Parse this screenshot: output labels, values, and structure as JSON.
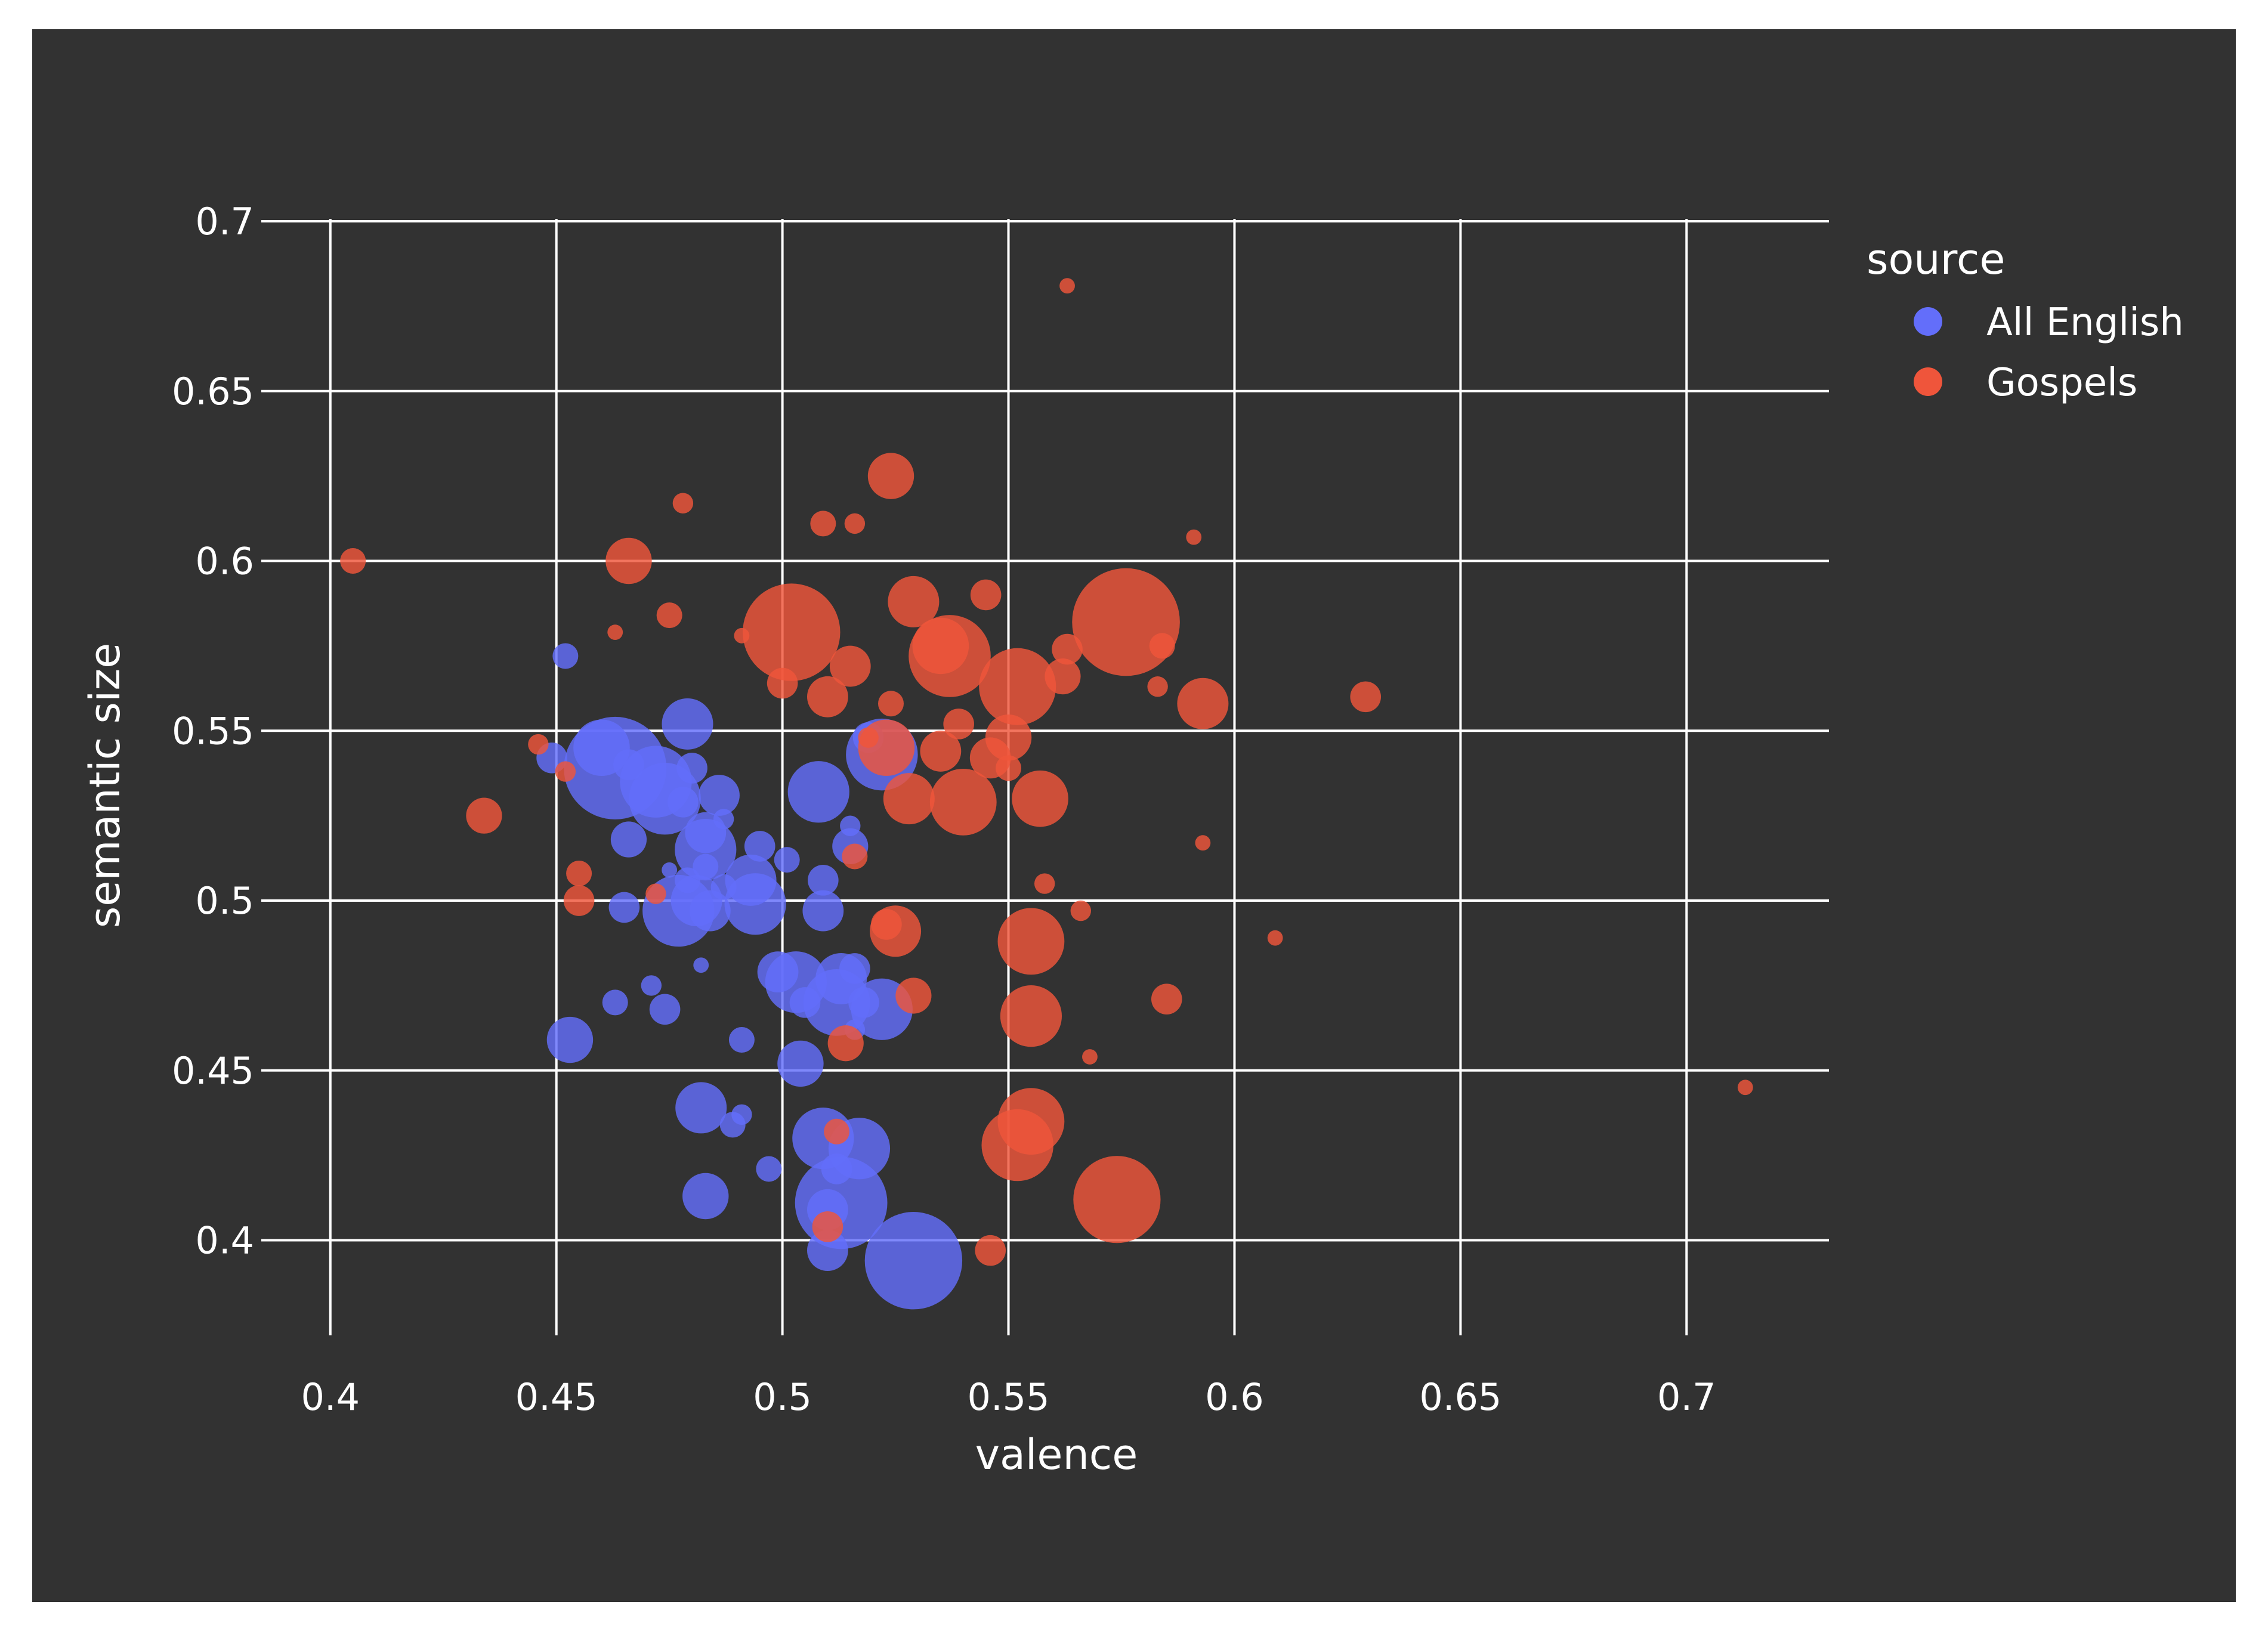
{
  "chart_data": {
    "type": "scatter",
    "xlabel": "valence",
    "ylabel": "semantic size",
    "xlim": [
      0.39,
      0.7315
    ],
    "ylim": [
      0.372,
      0.7
    ],
    "xticks": [
      0.4,
      0.45,
      0.5,
      0.55,
      0.6,
      0.65,
      0.7
    ],
    "xtick_labels": [
      "0.4",
      "0.45",
      "0.5",
      "0.55",
      "0.6",
      "0.65",
      "0.7"
    ],
    "yticks": [
      0.4,
      0.45,
      0.5,
      0.55,
      0.6,
      0.65,
      0.7
    ],
    "ytick_labels": [
      "0.4",
      "0.45",
      "0.5",
      "0.55",
      "0.6",
      "0.65",
      "0.7"
    ],
    "grid": true,
    "legend_title": "source",
    "legend_position": "top-right",
    "series": [
      {
        "name": "All English",
        "color": "#636efa",
        "points": [
          {
            "x": 0.452,
            "y": 0.572,
            "size": 5
          },
          {
            "x": 0.449,
            "y": 0.542,
            "size": 6
          },
          {
            "x": 0.46,
            "y": 0.545,
            "size": 11
          },
          {
            "x": 0.463,
            "y": 0.539,
            "size": 20
          },
          {
            "x": 0.466,
            "y": 0.54,
            "size": 6
          },
          {
            "x": 0.472,
            "y": 0.535,
            "size": 14
          },
          {
            "x": 0.474,
            "y": 0.53,
            "size": 14
          },
          {
            "x": 0.479,
            "y": 0.552,
            "size": 10
          },
          {
            "x": 0.48,
            "y": 0.539,
            "size": 6
          },
          {
            "x": 0.478,
            "y": 0.529,
            "size": 6
          },
          {
            "x": 0.486,
            "y": 0.531,
            "size": 8
          },
          {
            "x": 0.466,
            "y": 0.518,
            "size": 7
          },
          {
            "x": 0.483,
            "y": 0.52,
            "size": 8
          },
          {
            "x": 0.483,
            "y": 0.515,
            "size": 12
          },
          {
            "x": 0.487,
            "y": 0.524,
            "size": 4
          },
          {
            "x": 0.495,
            "y": 0.516,
            "size": 6
          },
          {
            "x": 0.501,
            "y": 0.512,
            "size": 5
          },
          {
            "x": 0.475,
            "y": 0.509,
            "size": 3
          },
          {
            "x": 0.479,
            "y": 0.506,
            "size": 5
          },
          {
            "x": 0.483,
            "y": 0.51,
            "size": 5
          },
          {
            "x": 0.493,
            "y": 0.506,
            "size": 10
          },
          {
            "x": 0.487,
            "y": 0.504,
            "size": 5
          },
          {
            "x": 0.481,
            "y": 0.5,
            "size": 10
          },
          {
            "x": 0.477,
            "y": 0.497,
            "size": 14
          },
          {
            "x": 0.465,
            "y": 0.498,
            "size": 6
          },
          {
            "x": 0.484,
            "y": 0.497,
            "size": 8
          },
          {
            "x": 0.494,
            "y": 0.499,
            "size": 12
          },
          {
            "x": 0.509,
            "y": 0.506,
            "size": 6
          },
          {
            "x": 0.509,
            "y": 0.497,
            "size": 8
          },
          {
            "x": 0.515,
            "y": 0.522,
            "size": 4
          },
          {
            "x": 0.515,
            "y": 0.516,
            "size": 7
          },
          {
            "x": 0.508,
            "y": 0.532,
            "size": 12
          },
          {
            "x": 0.519,
            "y": 0.548,
            "size": 6
          },
          {
            "x": 0.522,
            "y": 0.543,
            "size": 14
          },
          {
            "x": 0.482,
            "y": 0.481,
            "size": 3
          },
          {
            "x": 0.471,
            "y": 0.475,
            "size": 4
          },
          {
            "x": 0.463,
            "y": 0.47,
            "size": 5
          },
          {
            "x": 0.474,
            "y": 0.468,
            "size": 6
          },
          {
            "x": 0.499,
            "y": 0.479,
            "size": 8
          },
          {
            "x": 0.503,
            "y": 0.476,
            "size": 12
          },
          {
            "x": 0.505,
            "y": 0.47,
            "size": 6
          },
          {
            "x": 0.516,
            "y": 0.48,
            "size": 6
          },
          {
            "x": 0.513,
            "y": 0.477,
            "size": 10
          },
          {
            "x": 0.512,
            "y": 0.47,
            "size": 13
          },
          {
            "x": 0.518,
            "y": 0.47,
            "size": 6
          },
          {
            "x": 0.522,
            "y": 0.468,
            "size": 12
          },
          {
            "x": 0.516,
            "y": 0.462,
            "size": 4
          },
          {
            "x": 0.453,
            "y": 0.459,
            "size": 9
          },
          {
            "x": 0.491,
            "y": 0.459,
            "size": 5
          },
          {
            "x": 0.504,
            "y": 0.452,
            "size": 9
          },
          {
            "x": 0.482,
            "y": 0.439,
            "size": 10
          },
          {
            "x": 0.491,
            "y": 0.437,
            "size": 4
          },
          {
            "x": 0.489,
            "y": 0.434,
            "size": 5
          },
          {
            "x": 0.509,
            "y": 0.43,
            "size": 12
          },
          {
            "x": 0.517,
            "y": 0.427,
            "size": 12
          },
          {
            "x": 0.497,
            "y": 0.421,
            "size": 5
          },
          {
            "x": 0.512,
            "y": 0.421,
            "size": 6
          },
          {
            "x": 0.483,
            "y": 0.413,
            "size": 9
          },
          {
            "x": 0.513,
            "y": 0.411,
            "size": 18
          },
          {
            "x": 0.51,
            "y": 0.409,
            "size": 8
          },
          {
            "x": 0.51,
            "y": 0.397,
            "size": 8
          },
          {
            "x": 0.529,
            "y": 0.394,
            "size": 19
          }
        ]
      },
      {
        "name": "Gospels",
        "color": "#ef553b",
        "points": [
          {
            "x": 0.563,
            "y": 0.681,
            "size": 3
          },
          {
            "x": 0.524,
            "y": 0.625,
            "size": 9
          },
          {
            "x": 0.478,
            "y": 0.617,
            "size": 4
          },
          {
            "x": 0.509,
            "y": 0.611,
            "size": 5
          },
          {
            "x": 0.516,
            "y": 0.611,
            "size": 4
          },
          {
            "x": 0.591,
            "y": 0.607,
            "size": 3
          },
          {
            "x": 0.405,
            "y": 0.6,
            "size": 5
          },
          {
            "x": 0.466,
            "y": 0.6,
            "size": 9
          },
          {
            "x": 0.475,
            "y": 0.584,
            "size": 5
          },
          {
            "x": 0.463,
            "y": 0.579,
            "size": 3
          },
          {
            "x": 0.491,
            "y": 0.578,
            "size": 3
          },
          {
            "x": 0.502,
            "y": 0.579,
            "size": 19
          },
          {
            "x": 0.545,
            "y": 0.59,
            "size": 6
          },
          {
            "x": 0.529,
            "y": 0.588,
            "size": 10
          },
          {
            "x": 0.535,
            "y": 0.575,
            "size": 11
          },
          {
            "x": 0.537,
            "y": 0.572,
            "size": 16
          },
          {
            "x": 0.576,
            "y": 0.582,
            "size": 21
          },
          {
            "x": 0.584,
            "y": 0.575,
            "size": 5
          },
          {
            "x": 0.563,
            "y": 0.574,
            "size": 6
          },
          {
            "x": 0.515,
            "y": 0.569,
            "size": 8
          },
          {
            "x": 0.5,
            "y": 0.564,
            "size": 6
          },
          {
            "x": 0.562,
            "y": 0.566,
            "size": 7
          },
          {
            "x": 0.552,
            "y": 0.563,
            "size": 15
          },
          {
            "x": 0.583,
            "y": 0.563,
            "size": 4
          },
          {
            "x": 0.51,
            "y": 0.56,
            "size": 8
          },
          {
            "x": 0.524,
            "y": 0.558,
            "size": 5
          },
          {
            "x": 0.593,
            "y": 0.558,
            "size": 10
          },
          {
            "x": 0.629,
            "y": 0.56,
            "size": 6
          },
          {
            "x": 0.539,
            "y": 0.552,
            "size": 6
          },
          {
            "x": 0.55,
            "y": 0.548,
            "size": 9
          },
          {
            "x": 0.523,
            "y": 0.545,
            "size": 11
          },
          {
            "x": 0.535,
            "y": 0.544,
            "size": 8
          },
          {
            "x": 0.546,
            "y": 0.542,
            "size": 8
          },
          {
            "x": 0.55,
            "y": 0.539,
            "size": 5
          },
          {
            "x": 0.446,
            "y": 0.546,
            "size": 4
          },
          {
            "x": 0.452,
            "y": 0.538,
            "size": 4
          },
          {
            "x": 0.519,
            "y": 0.548,
            "size": 4
          },
          {
            "x": 0.528,
            "y": 0.53,
            "size": 10
          },
          {
            "x": 0.54,
            "y": 0.529,
            "size": 13
          },
          {
            "x": 0.557,
            "y": 0.53,
            "size": 11
          },
          {
            "x": 0.434,
            "y": 0.525,
            "size": 7
          },
          {
            "x": 0.593,
            "y": 0.517,
            "size": 3
          },
          {
            "x": 0.516,
            "y": 0.513,
            "size": 5
          },
          {
            "x": 0.455,
            "y": 0.508,
            "size": 5
          },
          {
            "x": 0.558,
            "y": 0.505,
            "size": 4
          },
          {
            "x": 0.455,
            "y": 0.5,
            "size": 6
          },
          {
            "x": 0.472,
            "y": 0.502,
            "size": 4
          },
          {
            "x": 0.566,
            "y": 0.497,
            "size": 4
          },
          {
            "x": 0.523,
            "y": 0.493,
            "size": 6
          },
          {
            "x": 0.525,
            "y": 0.491,
            "size": 10
          },
          {
            "x": 0.555,
            "y": 0.488,
            "size": 13
          },
          {
            "x": 0.609,
            "y": 0.489,
            "size": 3
          },
          {
            "x": 0.529,
            "y": 0.472,
            "size": 7
          },
          {
            "x": 0.585,
            "y": 0.471,
            "size": 6
          },
          {
            "x": 0.555,
            "y": 0.466,
            "size": 12
          },
          {
            "x": 0.514,
            "y": 0.458,
            "size": 7
          },
          {
            "x": 0.568,
            "y": 0.454,
            "size": 3
          },
          {
            "x": 0.713,
            "y": 0.445,
            "size": 3
          },
          {
            "x": 0.555,
            "y": 0.435,
            "size": 13
          },
          {
            "x": 0.552,
            "y": 0.428,
            "size": 14
          },
          {
            "x": 0.512,
            "y": 0.432,
            "size": 5
          },
          {
            "x": 0.574,
            "y": 0.412,
            "size": 17
          },
          {
            "x": 0.51,
            "y": 0.404,
            "size": 6
          },
          {
            "x": 0.546,
            "y": 0.397,
            "size": 6
          }
        ]
      }
    ]
  }
}
